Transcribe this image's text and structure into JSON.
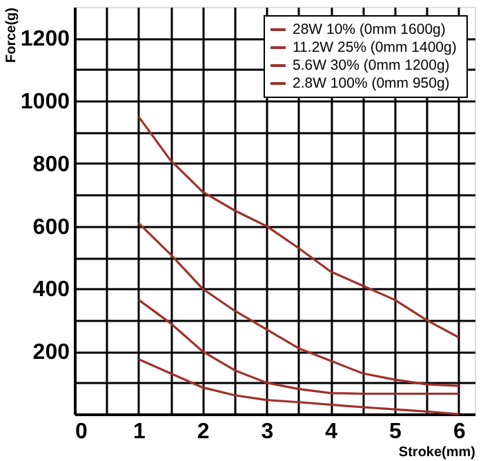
{
  "chart_data": {
    "type": "line",
    "xlabel": "Stroke(mm)",
    "ylabel": "Force(g)",
    "x": [
      1,
      1.5,
      2,
      2.5,
      3,
      3.5,
      4,
      4.5,
      5,
      5.5,
      6
    ],
    "series": [
      {
        "name": "28W 10% (0mm  1600g)",
        "color": "#a0302a",
        "values": [
          950,
          810,
          710,
          650,
          600,
          530,
          455,
          410,
          365,
          300,
          245
        ]
      },
      {
        "name": "11.2W 25% (0mm  1400g)",
        "color": "#a0302a",
        "values": [
          610,
          510,
          400,
          330,
          270,
          210,
          170,
          130,
          110,
          95,
          90
        ]
      },
      {
        "name": "5.6W 30% (0mm  1200g)",
        "color": "#a0302a",
        "values": [
          365,
          290,
          200,
          140,
          100,
          80,
          67,
          65,
          65,
          65,
          65
        ]
      },
      {
        "name": "2.8W 100% (0mm  950g)",
        "color": "#a0302a",
        "values": [
          175,
          130,
          85,
          60,
          45,
          38,
          30,
          22,
          15,
          8,
          0
        ]
      }
    ],
    "xlim": [
      0,
      6.25
    ],
    "xticks": [
      0,
      {
        "value": 0.5,
        "label": null
      },
      1,
      {
        "value": 1.5,
        "label": null
      },
      2,
      {
        "value": 2.5,
        "label": null
      },
      3,
      {
        "value": 3.5,
        "label": null
      },
      4,
      {
        "value": 4.5,
        "label": null
      },
      5,
      {
        "value": 5.5,
        "label": null
      },
      6
    ],
    "ylim": [
      0,
      1300
    ],
    "yticks": [
      {
        "value": 0,
        "label": null
      },
      {
        "value": 100,
        "label": null
      },
      200,
      {
        "value": 300,
        "label": null
      },
      400,
      {
        "value": 500,
        "label": null
      },
      600,
      {
        "value": 700,
        "label": null
      },
      800,
      {
        "value": 900,
        "label": null
      },
      1000,
      {
        "value": 1100,
        "label": null
      },
      1200
    ],
    "grid": true,
    "legend": "top right",
    "marker": "none",
    "line_style": "solid"
  }
}
